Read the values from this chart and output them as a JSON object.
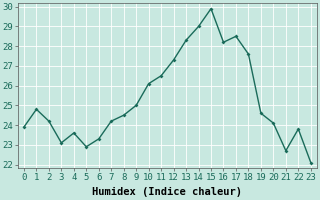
{
  "x": [
    0,
    1,
    2,
    3,
    4,
    5,
    6,
    7,
    8,
    9,
    10,
    11,
    12,
    13,
    14,
    15,
    16,
    17,
    18,
    19,
    20,
    21,
    22,
    23
  ],
  "y": [
    23.9,
    24.8,
    24.2,
    23.1,
    23.6,
    22.9,
    23.3,
    24.2,
    24.5,
    25.0,
    26.1,
    26.5,
    27.3,
    28.3,
    29.0,
    29.9,
    28.2,
    28.5,
    27.6,
    24.6,
    24.1,
    22.7,
    23.8,
    22.1
  ],
  "line_color": "#1a6b5a",
  "marker": "D",
  "marker_size": 2.0,
  "bg_color": "#c8e8e0",
  "grid_color": "#ffffff",
  "xlabel": "Humidex (Indice chaleur)",
  "ylim": [
    21.8,
    30.2
  ],
  "xlim": [
    -0.5,
    23.5
  ],
  "yticks": [
    22,
    23,
    24,
    25,
    26,
    27,
    28,
    29,
    30
  ],
  "xticks": [
    0,
    1,
    2,
    3,
    4,
    5,
    6,
    7,
    8,
    9,
    10,
    11,
    12,
    13,
    14,
    15,
    16,
    17,
    18,
    19,
    20,
    21,
    22,
    23
  ],
  "tick_fontsize": 6.5,
  "xlabel_fontsize": 7.5,
  "linewidth": 1.0
}
